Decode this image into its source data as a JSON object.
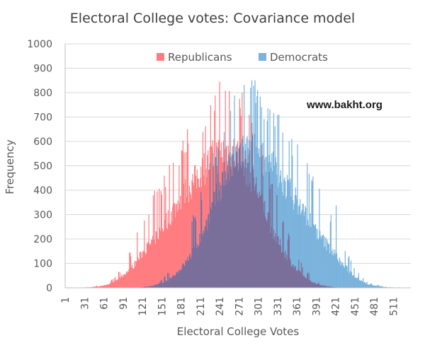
{
  "chart_data": {
    "type": "area",
    "title": "Electoral College votes: Covariance model",
    "xlabel": "Electoral College Votes",
    "ylabel": "Frequency",
    "watermark": "www.bakht.org",
    "xlim": [
      1,
      538
    ],
    "ylim": [
      0,
      1000
    ],
    "grid": true,
    "legend_position": "top-center",
    "y_ticks": [
      0,
      100,
      200,
      300,
      400,
      500,
      600,
      700,
      800,
      900,
      1000
    ],
    "x_ticks": [
      1,
      31,
      61,
      91,
      121,
      151,
      181,
      211,
      241,
      271,
      301,
      331,
      361,
      391,
      421,
      451,
      481,
      511
    ],
    "x": [
      1,
      20,
      40,
      60,
      70,
      80,
      90,
      100,
      110,
      120,
      130,
      140,
      150,
      160,
      170,
      180,
      190,
      200,
      210,
      220,
      230,
      240,
      250,
      260,
      270,
      280,
      290,
      300,
      310,
      320,
      330,
      340,
      350,
      360,
      370,
      380,
      390,
      400,
      410,
      420,
      430,
      450,
      470,
      500,
      538
    ],
    "series": [
      {
        "name": "Republicans",
        "color": "#ff7c80",
        "values": [
          0,
          0,
          2,
          8,
          15,
          30,
          50,
          70,
          100,
          140,
          170,
          200,
          240,
          280,
          320,
          360,
          400,
          430,
          470,
          500,
          530,
          550,
          560,
          560,
          540,
          500,
          460,
          400,
          330,
          260,
          200,
          150,
          110,
          75,
          50,
          30,
          18,
          10,
          5,
          2,
          0,
          0,
          0,
          0,
          0
        ],
        "spike_values": [
          0,
          0,
          4,
          12,
          25,
          50,
          90,
          140,
          210,
          380,
          300,
          400,
          430,
          520,
          560,
          600,
          660,
          700,
          730,
          740,
          800,
          870,
          860,
          840,
          830,
          800,
          720,
          640,
          560,
          480,
          380,
          300,
          220,
          150,
          100,
          60,
          30,
          15,
          8,
          3,
          0,
          0,
          0,
          0,
          0
        ]
      },
      {
        "name": "Democrats",
        "color": "#7ab3dc",
        "values": [
          0,
          0,
          0,
          0,
          0,
          0,
          0,
          0,
          0,
          2,
          5,
          10,
          18,
          30,
          50,
          75,
          110,
          150,
          200,
          260,
          330,
          400,
          460,
          500,
          540,
          560,
          560,
          550,
          530,
          500,
          470,
          430,
          400,
          360,
          320,
          280,
          240,
          200,
          170,
          140,
          100,
          50,
          15,
          2,
          0
        ],
        "spike_values": [
          0,
          0,
          0,
          0,
          0,
          0,
          0,
          0,
          0,
          3,
          8,
          15,
          30,
          60,
          100,
          150,
          220,
          300,
          380,
          480,
          560,
          640,
          720,
          800,
          830,
          840,
          860,
          870,
          800,
          740,
          730,
          700,
          660,
          600,
          560,
          520,
          430,
          400,
          300,
          380,
          210,
          90,
          25,
          4,
          0
        ]
      }
    ],
    "overlap_color": "#7b6e9a"
  }
}
